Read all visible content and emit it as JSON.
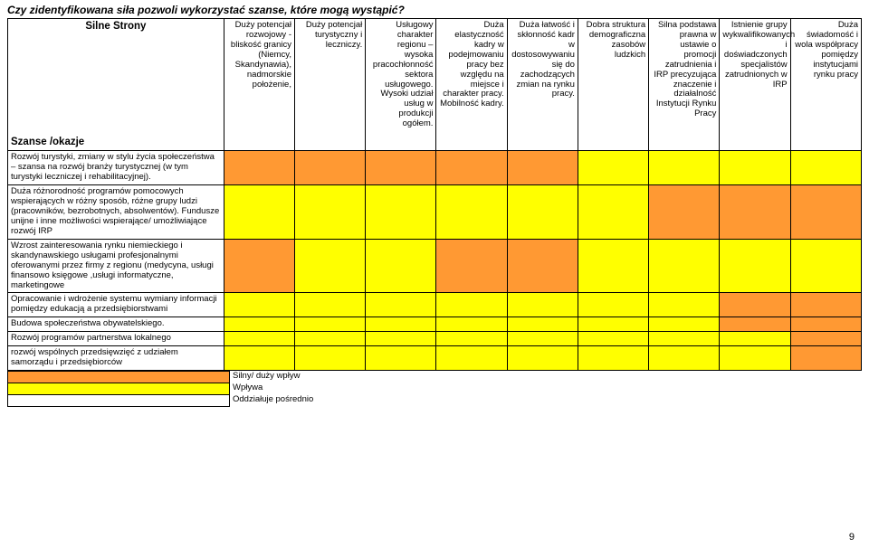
{
  "title": "Czy zidentyfikowana siła pozwoli wykorzystać szanse, które mogą wystąpić?",
  "colors": {
    "orange": "#ff9933",
    "yellow": "#ffff00",
    "border": "#000000",
    "bg": "#ffffff"
  },
  "header_left_top": "Silne Strony",
  "header_left_bottom": "Szanse /okazje",
  "columns": [
    "Duży potencjał rozwojowy - bliskość granicy (Niemcy, Skandynawia), nadmorskie położenie,",
    "Duży potencjał turystyczny i leczniczy.",
    "Usługowy charakter regionu – wysoka pracochłonność sektora usługowego. Wysoki udział usług w produkcji ogółem.",
    "Duża elastyczność kadry w podejmowaniu pracy bez względu na miejsce i charakter pracy. Mobilność kadry.",
    "Duża łatwość i skłonność kadr w dostosowywaniu się do zachodzących zmian na rynku pracy.",
    "Dobra struktura demograficzna zasobów ludzkich",
    "Silna podstawa prawna w ustawie o promocji zatrudnienia i IRP precyzująca znaczenie i działalność Instytucji Rynku Pracy",
    "Istnienie grupy wykwalifikowanych i doświadczonych specjalistów zatrudnionych w IRP",
    "Duża świadomość i wola współpracy pomiędzy instytucjami rynku pracy"
  ],
  "rows": [
    "Rozwój turystyki, zmiany w stylu życia społeczeństwa – szansa na rozwój branży turystycznej (w tym turystyki leczniczej i rehabilitacyjnej).",
    "Duża różnorodność programów pomocowych wspierających w różny sposób, różne grupy ludzi (pracowników, bezrobotnych, absolwentów). Fundusze unijne i inne możliwości wspierające/ umożliwiające rozwój IRP",
    "Wzrost zainteresowania rynku niemieckiego i skandynawskiego usługami profesjonalnymi oferowanymi przez firmy z regionu (medycyna, usługi finansowo księgowe ,usługi informatyczne, marketingowe",
    "Opracowanie i wdrożenie systemu wymiany informacji pomiędzy edukacją a przedsiębiorstwami",
    "Budowa społeczeństwa obywatelskiego.",
    "Rozwój programów partnerstwa lokalnego",
    "rozwój wspólnych przedsięwzięć z udziałem samorządu i przedsiębiorców"
  ],
  "matrix": [
    [
      "o",
      "o",
      "o",
      "o",
      "o",
      "y",
      "y",
      "y",
      "y"
    ],
    [
      "y",
      "y",
      "y",
      "y",
      "y",
      "y",
      "o",
      "o",
      "o"
    ],
    [
      "o",
      "y",
      "y",
      "o",
      "o",
      "y",
      "y",
      "y",
      "y"
    ],
    [
      "y",
      "y",
      "y",
      "y",
      "y",
      "y",
      "y",
      "o",
      "o"
    ],
    [
      "y",
      "y",
      "y",
      "y",
      "y",
      "y",
      "y",
      "o",
      "o"
    ],
    [
      "y",
      "y",
      "y",
      "y",
      "y",
      "y",
      "y",
      "y",
      "o"
    ],
    [
      "y",
      "y",
      "y",
      "y",
      "y",
      "y",
      "y",
      "y",
      "o"
    ]
  ],
  "legend": [
    "Silny/ duży wpływ",
    "Wpływa",
    "Oddziałuje pośrednio"
  ],
  "page_number": "9"
}
